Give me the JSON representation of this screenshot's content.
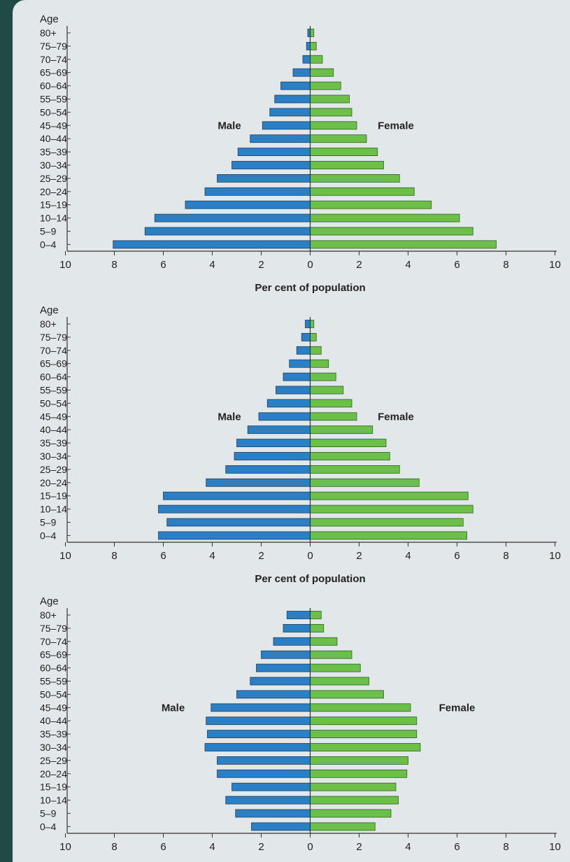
{
  "chart_data": [
    {
      "type": "bar",
      "orientation": "horizontal",
      "layout": "population-pyramid",
      "y_axis_title": "Age",
      "xlabel": "Per cent of population",
      "xlim": [
        -10,
        10
      ],
      "x_ticks": [
        10,
        8,
        6,
        4,
        2,
        0,
        2,
        4,
        6,
        8,
        10
      ],
      "categories": [
        "80+",
        "75–79",
        "70–74",
        "65–69",
        "60–64",
        "55–59",
        "50–54",
        "45–49",
        "40–44",
        "35–39",
        "30–34",
        "25–29",
        "20–24",
        "15–19",
        "10–14",
        "5–9",
        "0–4"
      ],
      "series": [
        {
          "name": "Male",
          "color": "#2b7fc4",
          "values": [
            0.1,
            0.15,
            0.3,
            0.7,
            1.2,
            1.45,
            1.65,
            1.95,
            2.45,
            2.95,
            3.2,
            3.8,
            4.3,
            5.1,
            6.35,
            6.75,
            8.05
          ]
        },
        {
          "name": "Female",
          "color": "#6cc04a",
          "values": [
            0.15,
            0.25,
            0.5,
            0.95,
            1.25,
            1.6,
            1.7,
            1.9,
            2.3,
            2.75,
            3.0,
            3.65,
            4.25,
            4.95,
            6.1,
            6.65,
            7.6
          ]
        }
      ],
      "male_label": "Male",
      "female_label": "Female",
      "male_label_pos": [
        3.3,
        7
      ],
      "female_label_pos": [
        3.5,
        7
      ]
    },
    {
      "type": "bar",
      "orientation": "horizontal",
      "layout": "population-pyramid",
      "y_axis_title": "Age",
      "xlabel": "Per cent of population",
      "xlim": [
        -10,
        10
      ],
      "x_ticks": [
        10,
        8,
        6,
        4,
        2,
        0,
        2,
        4,
        6,
        8,
        10
      ],
      "categories": [
        "80+",
        "75–79",
        "70–74",
        "65–69",
        "60–64",
        "55–59",
        "50–54",
        "45–49",
        "40–44",
        "35–39",
        "30–34",
        "25–29",
        "20–24",
        "15–19",
        "10–14",
        "5–9",
        "0–4"
      ],
      "series": [
        {
          "name": "Male",
          "color": "#2b7fc4",
          "values": [
            0.2,
            0.35,
            0.55,
            0.85,
            1.1,
            1.4,
            1.75,
            2.1,
            2.55,
            3.0,
            3.1,
            3.45,
            4.25,
            6.0,
            6.2,
            5.85,
            6.2
          ]
        },
        {
          "name": "Female",
          "color": "#6cc04a",
          "values": [
            0.15,
            0.25,
            0.45,
            0.75,
            1.05,
            1.35,
            1.7,
            1.9,
            2.55,
            3.1,
            3.25,
            3.65,
            4.45,
            6.45,
            6.65,
            6.25,
            6.4
          ]
        }
      ],
      "male_label": "Male",
      "female_label": "Female",
      "male_label_pos": [
        3.3,
        7
      ],
      "female_label_pos": [
        3.5,
        7
      ]
    },
    {
      "type": "bar",
      "orientation": "horizontal",
      "layout": "population-pyramid",
      "y_axis_title": "Age",
      "xlabel": "",
      "xlim": [
        -10,
        10
      ],
      "x_ticks": [
        10,
        8,
        6,
        4,
        2,
        0,
        2,
        4,
        6,
        8,
        10
      ],
      "categories": [
        "80+",
        "75–79",
        "70–74",
        "65–69",
        "60–64",
        "55–59",
        "50–54",
        "45–49",
        "40–44",
        "35–39",
        "30–34",
        "25–29",
        "20–24",
        "15–19",
        "10–14",
        "5–9",
        "0–4"
      ],
      "series": [
        {
          "name": "Male",
          "color": "#2b7fc4",
          "values": [
            0.95,
            1.1,
            1.5,
            2.0,
            2.2,
            2.45,
            3.0,
            4.05,
            4.25,
            4.2,
            4.3,
            3.8,
            3.8,
            3.2,
            3.45,
            3.05,
            2.4
          ]
        },
        {
          "name": "Female",
          "color": "#6cc04a",
          "values": [
            0.45,
            0.55,
            1.1,
            1.7,
            2.05,
            2.4,
            3.0,
            4.1,
            4.35,
            4.35,
            4.5,
            4.0,
            3.95,
            3.5,
            3.6,
            3.3,
            2.65
          ]
        }
      ],
      "male_label": "Male",
      "female_label": "Female",
      "male_label_pos": [
        5.6,
        7
      ],
      "female_label_pos": [
        6.0,
        7
      ]
    }
  ]
}
